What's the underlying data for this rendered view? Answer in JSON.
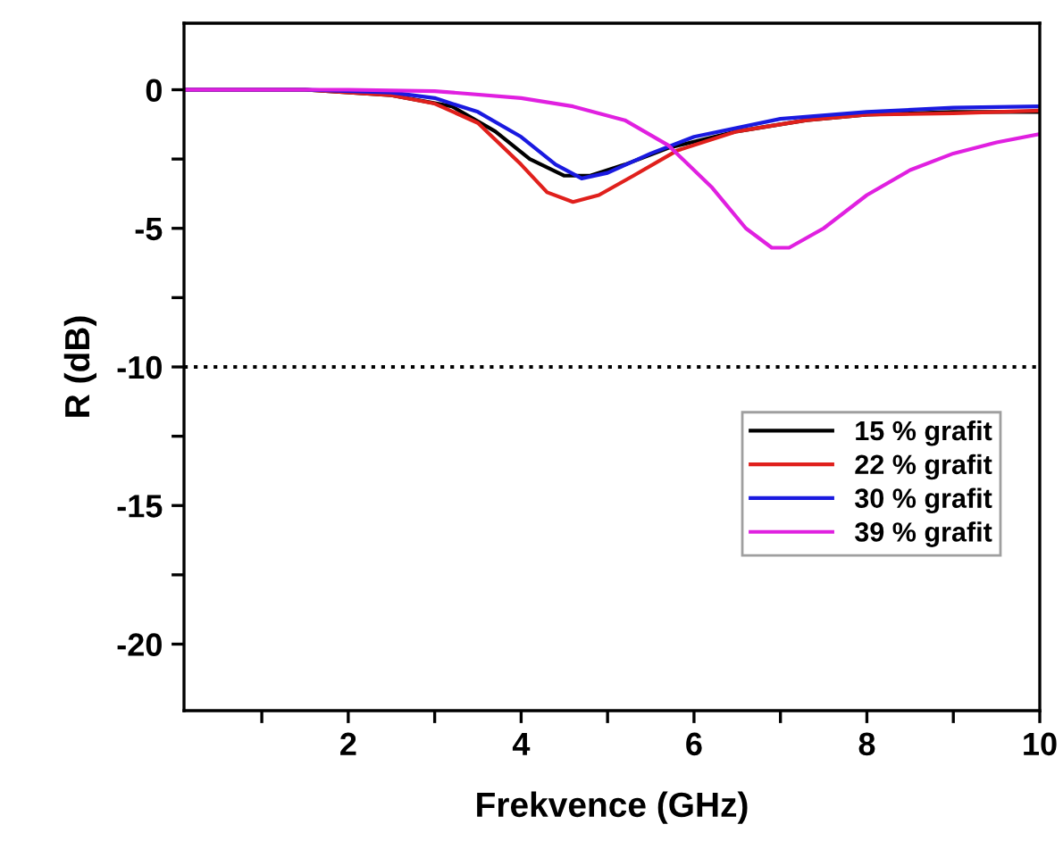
{
  "chart_data": {
    "type": "line",
    "xlabel": "Frekvence (GHz)",
    "ylabel": "R (dB)",
    "xlim": [
      0.1,
      10
    ],
    "ylim": [
      -22.4,
      2.4
    ],
    "xticks": [
      {
        "value": 1,
        "label": null
      },
      2,
      {
        "value": 3,
        "label": null
      },
      4,
      {
        "value": 5,
        "label": null
      },
      6,
      {
        "value": 7,
        "label": null
      },
      8,
      {
        "value": 9,
        "label": null
      },
      10
    ],
    "yticks": [
      -20,
      {
        "value": -17.5,
        "label": null
      },
      -15,
      {
        "value": -12.5,
        "label": null
      },
      -10,
      {
        "value": -7.5,
        "label": null
      },
      -5,
      {
        "value": -2.5,
        "label": null
      },
      0
    ],
    "grid": false,
    "legend": "right",
    "marker": "none",
    "line_style": "solid",
    "ref_lines": [
      {
        "axis": "y",
        "value": -10,
        "label": null,
        "color": "#000000",
        "line_style": "dotted"
      }
    ],
    "series": [
      {
        "name": "15 % grafit",
        "color": "#000000",
        "x": [
          0.1,
          1.5,
          2.5,
          3.2,
          3.7,
          4.1,
          4.5,
          4.8,
          5.2,
          5.7,
          6.5,
          7.3,
          8,
          9,
          10
        ],
        "values": [
          0,
          0,
          -0.2,
          -0.6,
          -1.5,
          -2.5,
          -3.1,
          -3.1,
          -2.7,
          -2.1,
          -1.5,
          -1.1,
          -0.9,
          -0.8,
          -0.8
        ]
      },
      {
        "name": "22 % grafit",
        "color": "#e0201c",
        "x": [
          0.1,
          1.5,
          2.5,
          3.0,
          3.5,
          4.0,
          4.3,
          4.6,
          4.9,
          5.3,
          5.8,
          6.5,
          7.3,
          8,
          9,
          10
        ],
        "values": [
          0,
          0,
          -0.2,
          -0.5,
          -1.2,
          -2.7,
          -3.7,
          -4.05,
          -3.8,
          -3.1,
          -2.2,
          -1.5,
          -1.1,
          -0.9,
          -0.85,
          -0.75
        ]
      },
      {
        "name": "30 % grafit",
        "color": "#1a1ae0",
        "x": [
          0.1,
          1.5,
          2.5,
          3.0,
          3.5,
          4.0,
          4.4,
          4.7,
          5.0,
          5.5,
          6.0,
          7,
          8,
          9,
          10
        ],
        "values": [
          0,
          0,
          -0.1,
          -0.3,
          -0.8,
          -1.7,
          -2.7,
          -3.2,
          -3.0,
          -2.3,
          -1.7,
          -1.05,
          -0.8,
          -0.65,
          -0.6
        ]
      },
      {
        "name": "39 % grafit",
        "color": "#e020e0",
        "x": [
          0.1,
          2,
          3,
          4,
          4.6,
          5.2,
          5.7,
          6.2,
          6.6,
          6.9,
          7.1,
          7.5,
          8,
          8.5,
          9,
          9.5,
          10
        ],
        "values": [
          0,
          0,
          -0.05,
          -0.3,
          -0.6,
          -1.1,
          -2.0,
          -3.5,
          -5.0,
          -5.7,
          -5.7,
          -5.0,
          -3.8,
          -2.9,
          -2.3,
          -1.9,
          -1.6
        ]
      }
    ]
  }
}
